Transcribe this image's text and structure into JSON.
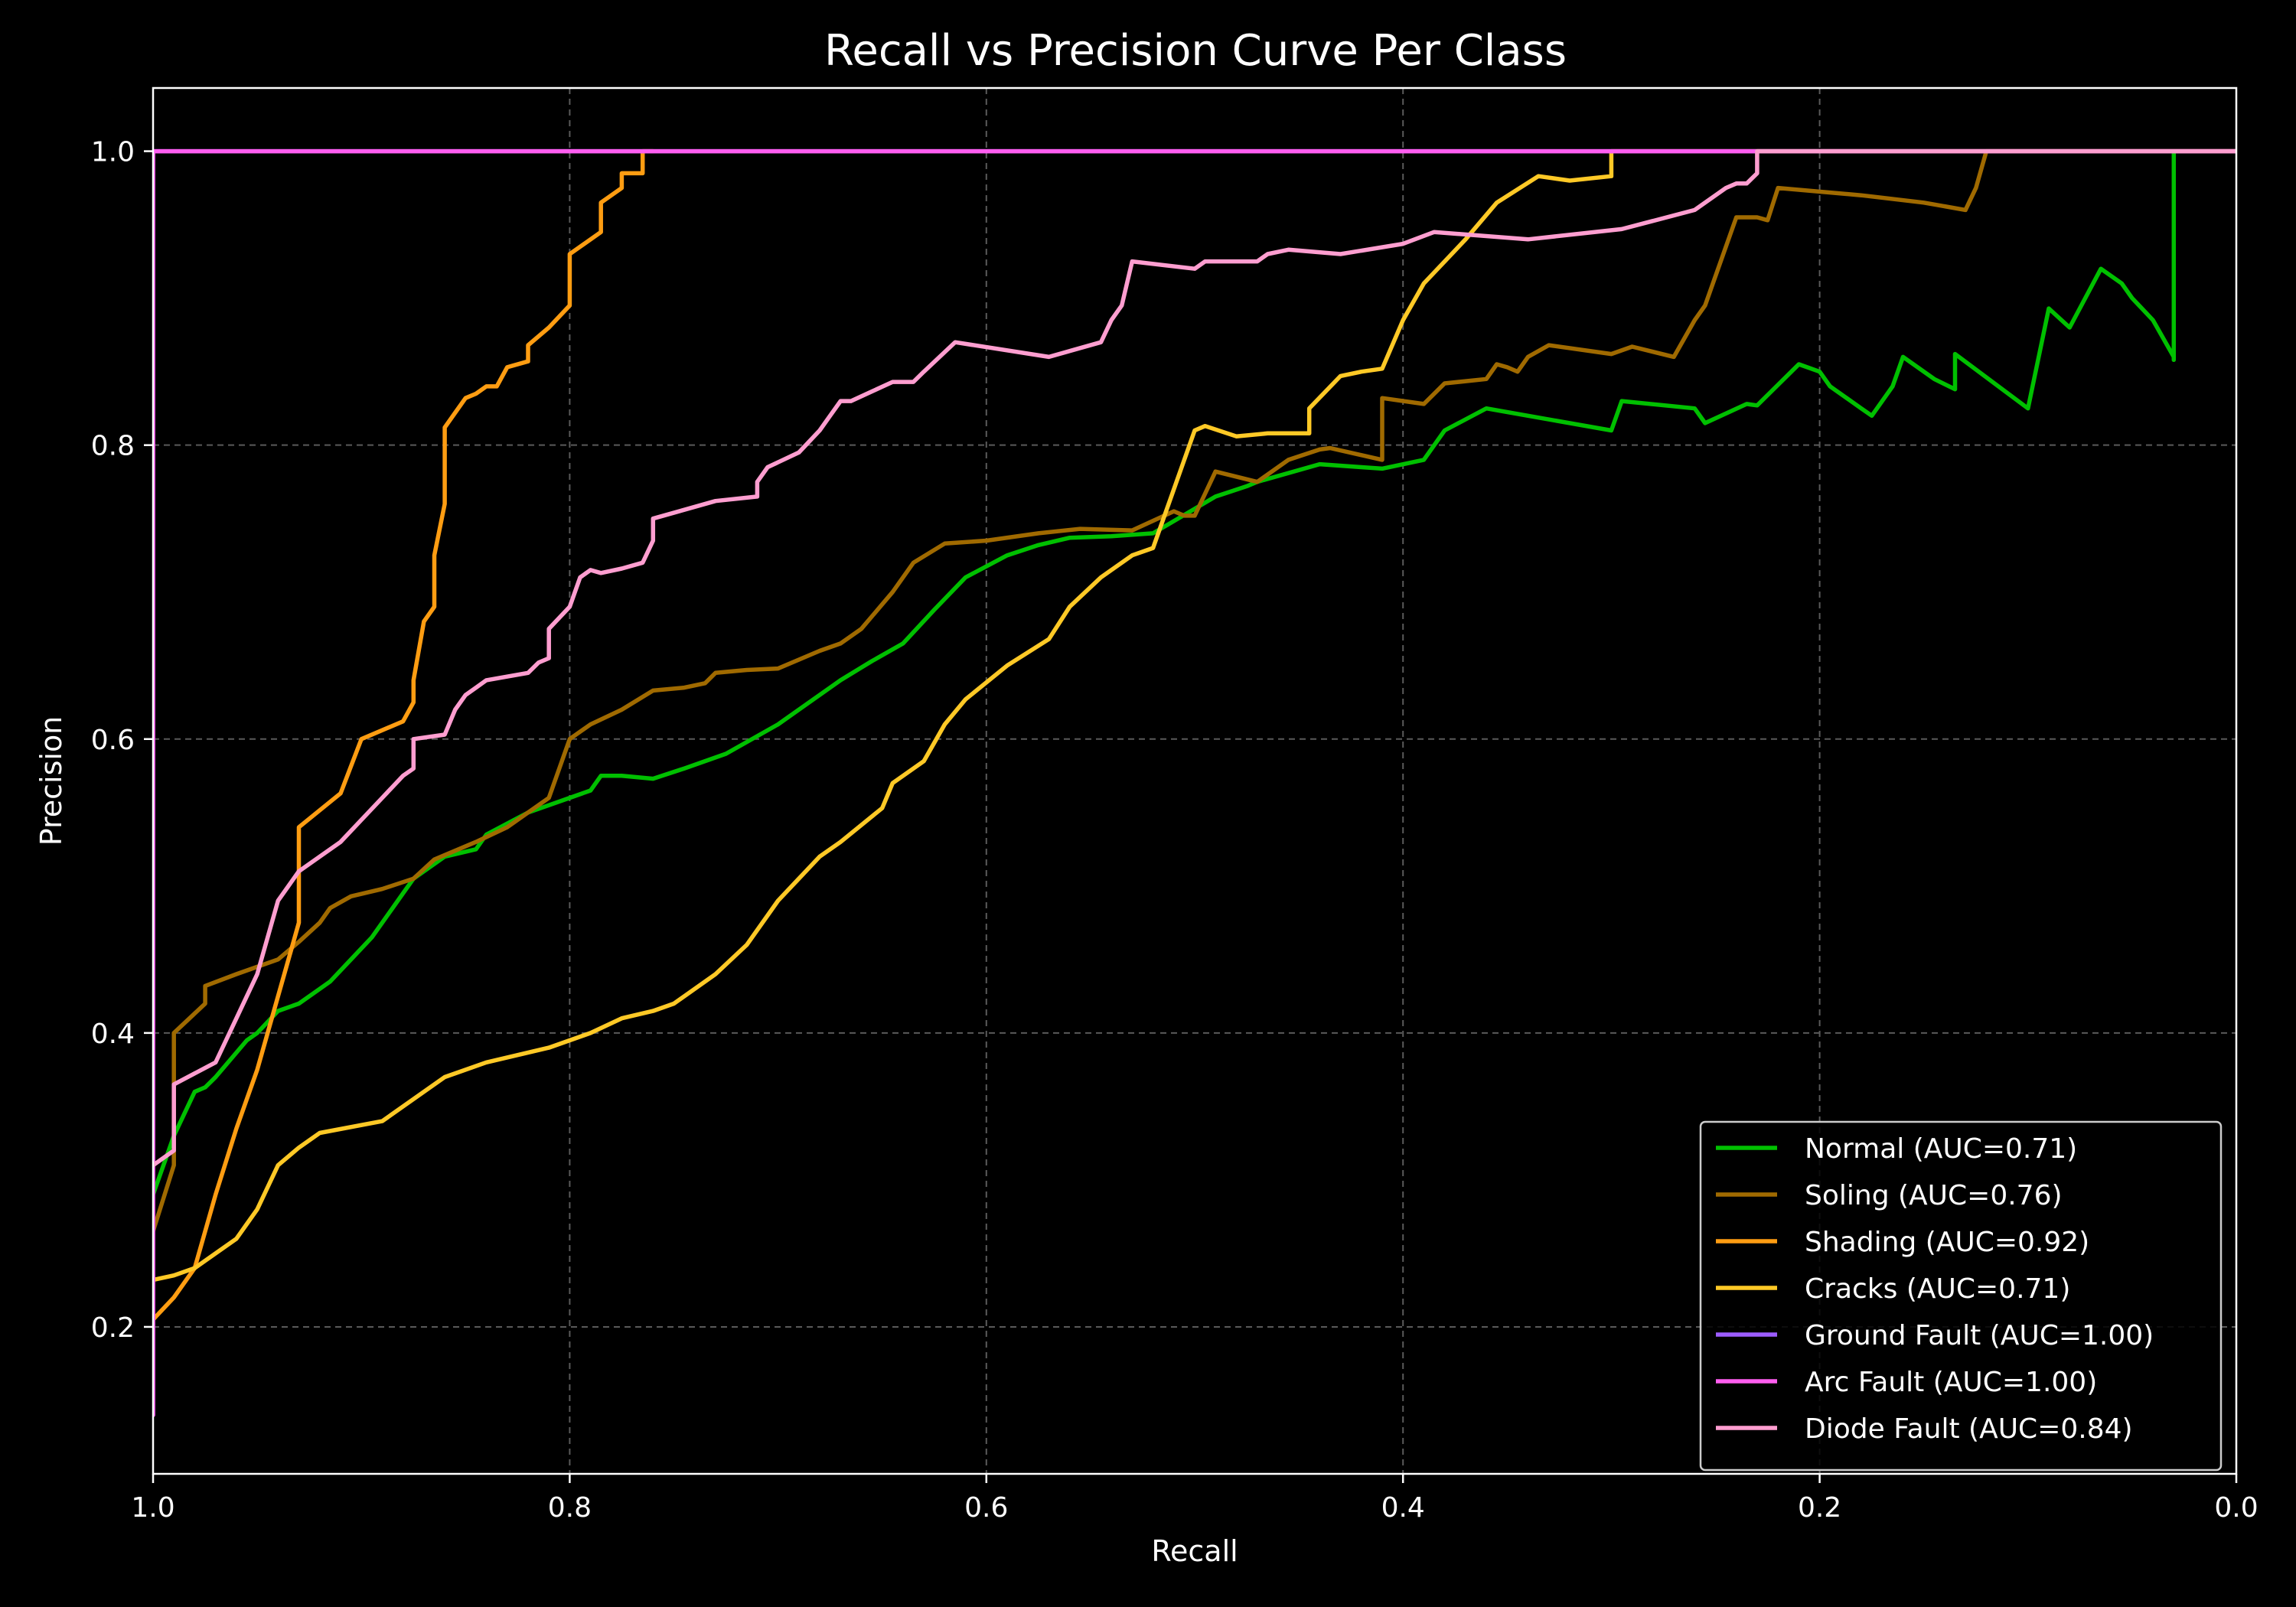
{
  "chart_data": {
    "type": "line",
    "title": "Recall vs Precision Curve Per Class",
    "xlabel": "Recall",
    "ylabel": "Precision",
    "xlim": [
      1.0,
      0.0
    ],
    "ylim": [
      0.1,
      1.043
    ],
    "x_inverted": true,
    "xticks": [
      1.0,
      0.8,
      0.6,
      0.4,
      0.2,
      0.0
    ],
    "xtick_labels": [
      "1.0",
      "0.8",
      "0.6",
      "0.4",
      "0.2",
      "0.0"
    ],
    "yticks": [
      0.2,
      0.4,
      0.6,
      0.8,
      1.0
    ],
    "ytick_labels": [
      "0.2",
      "0.4",
      "0.6",
      "0.8",
      "1.0"
    ],
    "grid": true,
    "legend_position": "bottom-right",
    "background": "#000000",
    "series": [
      {
        "name": "Normal (AUC=0.71)",
        "color": "#00c000",
        "x": [
          1.0,
          0.99,
          0.98,
          0.975,
          0.97,
          0.955,
          0.95,
          0.94,
          0.93,
          0.92,
          0.915,
          0.905,
          0.895,
          0.885,
          0.88,
          0.875,
          0.86,
          0.845,
          0.84,
          0.82,
          0.8,
          0.79,
          0.785,
          0.775,
          0.76,
          0.745,
          0.725,
          0.7,
          0.685,
          0.67,
          0.655,
          0.64,
          0.625,
          0.61,
          0.59,
          0.575,
          0.56,
          0.54,
          0.52,
          0.49,
          0.475,
          0.47,
          0.44,
          0.42,
          0.41,
          0.39,
          0.38,
          0.36,
          0.34,
          0.3,
          0.295,
          0.26,
          0.255,
          0.235,
          0.23,
          0.21,
          0.2,
          0.195,
          0.18,
          0.175,
          0.165,
          0.16,
          0.145,
          0.135,
          0.135,
          0.1,
          0.09,
          0.08,
          0.065,
          0.055,
          0.05,
          0.04,
          0.03,
          0.03,
          0.03
        ],
        "y": [
          0.29,
          0.33,
          0.36,
          0.363,
          0.37,
          0.395,
          0.4,
          0.415,
          0.42,
          0.43,
          0.435,
          0.45,
          0.465,
          0.485,
          0.495,
          0.505,
          0.52,
          0.525,
          0.535,
          0.55,
          0.56,
          0.565,
          0.575,
          0.575,
          0.573,
          0.58,
          0.59,
          0.61,
          0.625,
          0.64,
          0.653,
          0.665,
          0.688,
          0.71,
          0.725,
          0.732,
          0.737,
          0.738,
          0.74,
          0.765,
          0.772,
          0.775,
          0.787,
          0.785,
          0.784,
          0.79,
          0.81,
          0.825,
          0.82,
          0.81,
          0.83,
          0.825,
          0.815,
          0.828,
          0.827,
          0.855,
          0.85,
          0.84,
          0.825,
          0.82,
          0.84,
          0.86,
          0.845,
          0.838,
          0.862,
          0.825,
          0.893,
          0.88,
          0.92,
          0.91,
          0.9,
          0.885,
          0.86,
          0.858,
          1.0
        ]
      },
      {
        "name": "Soling (AUC=0.76)",
        "color": "#a06a00",
        "x": [
          1.0,
          0.99,
          0.99,
          0.975,
          0.975,
          0.96,
          0.95,
          0.94,
          0.93,
          0.92,
          0.915,
          0.905,
          0.89,
          0.875,
          0.865,
          0.845,
          0.83,
          0.82,
          0.81,
          0.8,
          0.79,
          0.775,
          0.76,
          0.745,
          0.735,
          0.73,
          0.715,
          0.7,
          0.68,
          0.67,
          0.66,
          0.645,
          0.635,
          0.62,
          0.6,
          0.575,
          0.555,
          0.53,
          0.51,
          0.505,
          0.5,
          0.49,
          0.47,
          0.455,
          0.44,
          0.435,
          0.41,
          0.41,
          0.39,
          0.38,
          0.36,
          0.355,
          0.35,
          0.345,
          0.34,
          0.33,
          0.3,
          0.29,
          0.27,
          0.26,
          0.255,
          0.24,
          0.23,
          0.225,
          0.22,
          0.18,
          0.15,
          0.13,
          0.125,
          0.12,
          0.0
        ],
        "y": [
          0.265,
          0.31,
          0.4,
          0.42,
          0.432,
          0.44,
          0.445,
          0.45,
          0.462,
          0.475,
          0.485,
          0.493,
          0.498,
          0.505,
          0.518,
          0.53,
          0.54,
          0.55,
          0.56,
          0.6,
          0.61,
          0.62,
          0.633,
          0.635,
          0.638,
          0.645,
          0.647,
          0.648,
          0.66,
          0.665,
          0.675,
          0.7,
          0.72,
          0.733,
          0.735,
          0.74,
          0.743,
          0.742,
          0.755,
          0.752,
          0.752,
          0.782,
          0.775,
          0.79,
          0.797,
          0.798,
          0.79,
          0.832,
          0.828,
          0.842,
          0.845,
          0.855,
          0.853,
          0.85,
          0.86,
          0.868,
          0.862,
          0.867,
          0.86,
          0.885,
          0.895,
          0.955,
          0.955,
          0.953,
          0.975,
          0.97,
          0.965,
          0.96,
          0.975,
          1.0,
          1.0
        ]
      },
      {
        "name": "Shading (AUC=0.92)",
        "color": "#ff9d12",
        "x": [
          1.0,
          0.99,
          0.98,
          0.97,
          0.96,
          0.95,
          0.93,
          0.93,
          0.91,
          0.9,
          0.88,
          0.875,
          0.875,
          0.87,
          0.865,
          0.865,
          0.86,
          0.86,
          0.855,
          0.85,
          0.845,
          0.84,
          0.835,
          0.83,
          0.83,
          0.82,
          0.82,
          0.81,
          0.8,
          0.8,
          0.785,
          0.785,
          0.775,
          0.775,
          0.765,
          0.765,
          0.76
        ],
        "y": [
          0.205,
          0.22,
          0.24,
          0.29,
          0.335,
          0.375,
          0.475,
          0.54,
          0.563,
          0.6,
          0.612,
          0.625,
          0.64,
          0.68,
          0.69,
          0.725,
          0.76,
          0.812,
          0.822,
          0.832,
          0.835,
          0.84,
          0.84,
          0.853,
          0.853,
          0.857,
          0.868,
          0.88,
          0.895,
          0.93,
          0.945,
          0.965,
          0.975,
          0.985,
          0.985,
          1.0,
          1.0
        ]
      },
      {
        "name": "Cracks (AUC=0.71)",
        "color": "#ffc926",
        "x": [
          1.0,
          0.99,
          0.98,
          0.97,
          0.96,
          0.955,
          0.95,
          0.945,
          0.94,
          0.93,
          0.92,
          0.89,
          0.875,
          0.86,
          0.84,
          0.81,
          0.8,
          0.79,
          0.775,
          0.76,
          0.75,
          0.73,
          0.715,
          0.7,
          0.69,
          0.68,
          0.67,
          0.65,
          0.645,
          0.63,
          0.62,
          0.61,
          0.59,
          0.57,
          0.56,
          0.545,
          0.53,
          0.52,
          0.51,
          0.5,
          0.495,
          0.48,
          0.465,
          0.455,
          0.445,
          0.445,
          0.43,
          0.42,
          0.41,
          0.4,
          0.39,
          0.37,
          0.355,
          0.335,
          0.32,
          0.3,
          0.3,
          0.0
        ],
        "y": [
          0.232,
          0.235,
          0.24,
          0.25,
          0.26,
          0.27,
          0.28,
          0.295,
          0.31,
          0.322,
          0.332,
          0.34,
          0.355,
          0.37,
          0.38,
          0.39,
          0.395,
          0.4,
          0.41,
          0.415,
          0.42,
          0.44,
          0.46,
          0.49,
          0.505,
          0.52,
          0.53,
          0.553,
          0.57,
          0.585,
          0.61,
          0.627,
          0.65,
          0.668,
          0.69,
          0.71,
          0.725,
          0.73,
          0.77,
          0.81,
          0.813,
          0.806,
          0.808,
          0.808,
          0.808,
          0.825,
          0.847,
          0.85,
          0.852,
          0.885,
          0.91,
          0.94,
          0.965,
          0.983,
          0.98,
          0.983,
          1.0,
          1.0
        ]
      },
      {
        "name": "Ground Fault (AUC=1.00)",
        "color": "#9c5cff",
        "x": [
          1.0,
          1.0,
          0.0
        ],
        "y": [
          0.14,
          1.0,
          1.0
        ]
      },
      {
        "name": "Arc Fault (AUC=1.00)",
        "color": "#ff5ef0",
        "x": [
          1.0,
          1.0,
          0.0
        ],
        "y": [
          0.14,
          1.0,
          1.0
        ]
      },
      {
        "name": "Diode Fault (AUC=0.84)",
        "color": "#ff9ed0",
        "x": [
          1.0,
          0.99,
          0.99,
          0.97,
          0.965,
          0.96,
          0.955,
          0.95,
          0.945,
          0.94,
          0.93,
          0.92,
          0.91,
          0.9,
          0.89,
          0.88,
          0.875,
          0.875,
          0.86,
          0.855,
          0.85,
          0.845,
          0.84,
          0.82,
          0.815,
          0.81,
          0.81,
          0.8,
          0.795,
          0.79,
          0.785,
          0.775,
          0.765,
          0.76,
          0.76,
          0.73,
          0.71,
          0.71,
          0.705,
          0.69,
          0.68,
          0.675,
          0.67,
          0.665,
          0.645,
          0.635,
          0.63,
          0.615,
          0.57,
          0.545,
          0.54,
          0.535,
          0.53,
          0.5,
          0.495,
          0.485,
          0.47,
          0.465,
          0.455,
          0.43,
          0.4,
          0.385,
          0.34,
          0.295,
          0.26,
          0.245,
          0.24,
          0.235,
          0.23,
          0.23,
          0.0
        ],
        "y": [
          0.31,
          0.32,
          0.365,
          0.38,
          0.395,
          0.41,
          0.425,
          0.44,
          0.465,
          0.49,
          0.51,
          0.52,
          0.53,
          0.545,
          0.56,
          0.575,
          0.58,
          0.6,
          0.603,
          0.62,
          0.63,
          0.635,
          0.64,
          0.645,
          0.652,
          0.655,
          0.675,
          0.69,
          0.71,
          0.715,
          0.713,
          0.716,
          0.72,
          0.735,
          0.75,
          0.762,
          0.765,
          0.775,
          0.785,
          0.795,
          0.81,
          0.82,
          0.83,
          0.83,
          0.843,
          0.843,
          0.85,
          0.87,
          0.86,
          0.87,
          0.885,
          0.895,
          0.925,
          0.92,
          0.925,
          0.925,
          0.925,
          0.93,
          0.933,
          0.93,
          0.937,
          0.945,
          0.94,
          0.947,
          0.96,
          0.975,
          0.978,
          0.978,
          0.985,
          1.0,
          1.0
        ]
      }
    ]
  }
}
